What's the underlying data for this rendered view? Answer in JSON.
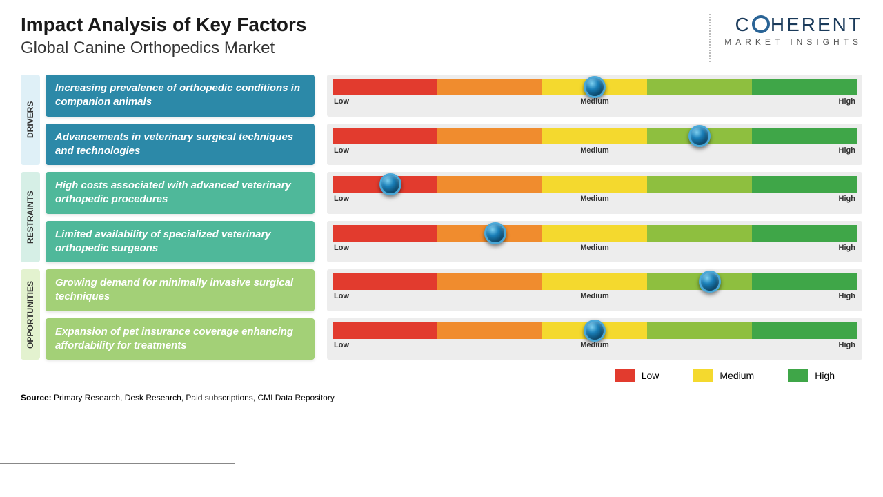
{
  "header": {
    "title": "Impact Analysis of Key Factors",
    "subtitle": "Global Canine Orthopedics Market",
    "logo_main_pre": "C",
    "logo_main_post": "HERENT",
    "logo_sub": "MARKET INSIGHTS"
  },
  "scale": {
    "low": "Low",
    "medium": "Medium",
    "high": "High",
    "segment_colors": [
      "#e23b2e",
      "#f08c2e",
      "#f4d92e",
      "#8ebf3f",
      "#3fa648"
    ]
  },
  "categories": [
    {
      "name": "DRIVERS",
      "label_bg": "#dff0f7",
      "factor_bg": "#2c89a8",
      "rows": [
        {
          "text": "Increasing prevalence of orthopedic conditions in companion animals",
          "knob_pct": 50
        },
        {
          "text": "Advancements in veterinary surgical techniques and technologies",
          "knob_pct": 70
        }
      ]
    },
    {
      "name": "RESTRAINTS",
      "label_bg": "#d6efe6",
      "factor_bg": "#4fb89a",
      "rows": [
        {
          "text": "High costs associated with advanced veterinary orthopedic procedures",
          "knob_pct": 11
        },
        {
          "text": "Limited availability of specialized veterinary orthopedic surgeons",
          "knob_pct": 31
        }
      ]
    },
    {
      "name": "OPPORTUNITIES",
      "label_bg": "#e3f2cf",
      "factor_bg": "#a3d077",
      "rows": [
        {
          "text": "Growing demand for minimally invasive surgical techniques",
          "knob_pct": 72
        },
        {
          "text": "Expansion of pet insurance coverage enhancing affordability for treatments",
          "knob_pct": 50
        }
      ]
    }
  ],
  "legend": {
    "items": [
      {
        "label": "Low",
        "color": "#e23b2e"
      },
      {
        "label": "Medium",
        "color": "#f4d92e"
      },
      {
        "label": "High",
        "color": "#3fa648"
      }
    ]
  },
  "source": {
    "label": "Source:",
    "text": " Primary Research, Desk Research, Paid subscriptions, CMI Data Repository"
  }
}
